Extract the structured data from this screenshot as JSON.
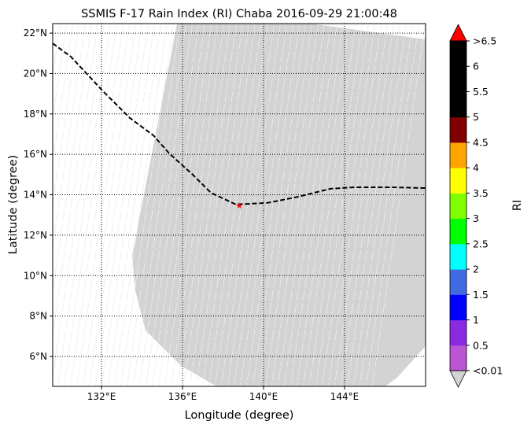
{
  "chart_data": {
    "type": "map",
    "title": "SSMIS F-17 Rain Index (RI) Chaba 2016-09-29 21:00:48",
    "xlabel": "Longitude (degree)",
    "ylabel": "Latitude (degree)",
    "xlim": [
      129.59,
      148.0
    ],
    "ylim": [
      4.52,
      22.47
    ],
    "xticks": [
      {
        "v": 132,
        "label": "132°E"
      },
      {
        "v": 136,
        "label": "136°E"
      },
      {
        "v": 140,
        "label": "140°E"
      },
      {
        "v": 144,
        "label": "144°E"
      }
    ],
    "yticks": [
      {
        "v": 6,
        "label": "6°N"
      },
      {
        "v": 8,
        "label": "8°N"
      },
      {
        "v": 10,
        "label": "10°N"
      },
      {
        "v": 12,
        "label": "12°N"
      },
      {
        "v": 14,
        "label": "14°N"
      },
      {
        "v": 16,
        "label": "16°N"
      },
      {
        "v": 18,
        "label": "18°N"
      },
      {
        "v": 20,
        "label": "20°N"
      },
      {
        "v": 22,
        "label": "22°N"
      }
    ],
    "grid": true,
    "swath": {
      "color": "#d3d3d3",
      "polygon": [
        [
          135.73,
          22.47
        ],
        [
          142.33,
          22.47
        ],
        [
          148.0,
          21.69
        ],
        [
          148.0,
          6.51
        ],
        [
          146.6,
          4.96
        ],
        [
          146.02,
          4.53
        ],
        [
          137.67,
          4.53
        ],
        [
          135.92,
          5.54
        ],
        [
          134.17,
          7.29
        ],
        [
          133.67,
          9.24
        ],
        [
          133.51,
          10.99
        ]
      ]
    },
    "track": [
      [
        129.59,
        21.49
      ],
      [
        130.49,
        20.83
      ],
      [
        132.04,
        19.16
      ],
      [
        133.4,
        17.8
      ],
      [
        134.56,
        16.94
      ],
      [
        135.34,
        16.05
      ],
      [
        136.5,
        15.0
      ],
      [
        137.4,
        14.1
      ],
      [
        138.64,
        13.52
      ],
      [
        140.19,
        13.6
      ],
      [
        141.75,
        13.91
      ],
      [
        143.3,
        14.3
      ],
      [
        144.47,
        14.37
      ],
      [
        146.41,
        14.37
      ],
      [
        148.0,
        14.33
      ]
    ],
    "storm_center": {
      "lon": 138.8,
      "lat": 13.48,
      "color": "#ff0000"
    },
    "colorbar": {
      "label": "RI",
      "under_color": "#d3d3d3",
      "over_color": "#ff0000",
      "bins": [
        {
          "from": 0,
          "to": 0.5,
          "color": "#ba55d3"
        },
        {
          "from": 0.5,
          "to": 1,
          "color": "#8a2be2"
        },
        {
          "from": 1,
          "to": 1.5,
          "color": "#0000ff"
        },
        {
          "from": 1.5,
          "to": 2,
          "color": "#4169e1"
        },
        {
          "from": 2,
          "to": 2.5,
          "color": "#00ffff"
        },
        {
          "from": 2.5,
          "to": 3,
          "color": "#00ff00"
        },
        {
          "from": 3,
          "to": 3.5,
          "color": "#7fff00"
        },
        {
          "from": 3.5,
          "to": 4,
          "color": "#ffff00"
        },
        {
          "from": 4,
          "to": 4.5,
          "color": "#ffa500"
        },
        {
          "from": 4.5,
          "to": 5,
          "color": "#800000"
        },
        {
          "from": 5,
          "to": 6.5,
          "color": "#000000"
        }
      ],
      "ticks": [
        "<0.01",
        "0.5",
        "1",
        "1.5",
        "2",
        "2.5",
        "3",
        "3.5",
        "4",
        "4.5",
        "5",
        "5.5",
        "6",
        ">6.5"
      ]
    }
  }
}
